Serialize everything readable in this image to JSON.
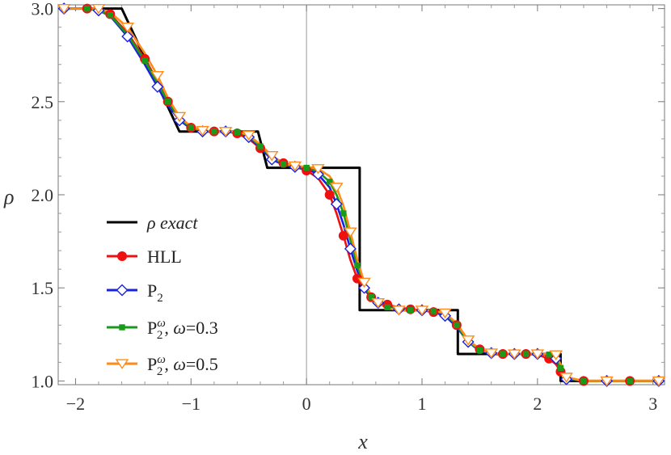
{
  "chart_data": {
    "type": "line",
    "xlabel": "x",
    "ylabel": "ρ",
    "xlim": [
      -2.15,
      3.1
    ],
    "ylim": [
      0.98,
      3.02
    ],
    "xticks": [
      -2,
      -1,
      0,
      1,
      2,
      3
    ],
    "xtick_labels": [
      "−2",
      "−1",
      "0",
      "1",
      "2",
      "3"
    ],
    "yticks": [
      1.0,
      1.5,
      2.0,
      2.5,
      3.0
    ],
    "ytick_labels": [
      "1.0",
      "1.5",
      "2.0",
      "2.5",
      "3.0"
    ],
    "legend_position": "left",
    "series": [
      {
        "name": "ρ exact",
        "legend_label": "ρ exact",
        "color": "#000000",
        "marker": "none",
        "x": [
          -2.1,
          -1.6,
          -1.1,
          -0.42,
          -0.34,
          0.46,
          0.46,
          1.31,
          1.31,
          2.2,
          2.2,
          3.05
        ],
        "y": [
          3.0,
          3.0,
          2.34,
          2.34,
          2.145,
          2.145,
          1.38,
          1.38,
          1.145,
          1.145,
          1.0,
          1.0
        ]
      },
      {
        "name": "HLL",
        "legend_label": "HLL",
        "color": "#ee1111",
        "marker": "circle",
        "x": [
          -2.1,
          -1.9,
          -1.8,
          -1.7,
          -1.55,
          -1.4,
          -1.29,
          -1.2,
          -1.1,
          -1.0,
          -0.9,
          -0.8,
          -0.7,
          -0.6,
          -0.5,
          -0.4,
          -0.3,
          -0.2,
          -0.1,
          0.0,
          0.1,
          0.2,
          0.26,
          0.32,
          0.38,
          0.44,
          0.5,
          0.56,
          0.62,
          0.7,
          0.8,
          0.9,
          1.0,
          1.1,
          1.2,
          1.3,
          1.4,
          1.5,
          1.6,
          1.7,
          1.8,
          1.9,
          2.0,
          2.1,
          2.16,
          2.2,
          2.25,
          2.4,
          2.6,
          2.8,
          3.05
        ],
        "y": [
          3.0,
          3.0,
          2.99,
          2.97,
          2.87,
          2.73,
          2.61,
          2.5,
          2.41,
          2.36,
          2.34,
          2.34,
          2.34,
          2.33,
          2.3,
          2.25,
          2.2,
          2.17,
          2.15,
          2.13,
          2.09,
          2.0,
          1.9,
          1.78,
          1.65,
          1.55,
          1.49,
          1.45,
          1.43,
          1.41,
          1.395,
          1.385,
          1.38,
          1.37,
          1.35,
          1.3,
          1.22,
          1.17,
          1.15,
          1.145,
          1.145,
          1.145,
          1.14,
          1.12,
          1.09,
          1.05,
          1.02,
          1.0,
          1.0,
          1.0,
          1.0
        ]
      },
      {
        "name": "P2",
        "legend_label": "P",
        "legend_sub": "2",
        "color": "#1a22dd",
        "marker": "diamond",
        "x": [
          -2.1,
          -1.9,
          -1.8,
          -1.7,
          -1.55,
          -1.4,
          -1.29,
          -1.2,
          -1.1,
          -1.0,
          -0.9,
          -0.8,
          -0.7,
          -0.6,
          -0.5,
          -0.4,
          -0.3,
          -0.2,
          -0.1,
          0.0,
          0.1,
          0.2,
          0.26,
          0.32,
          0.38,
          0.44,
          0.5,
          0.56,
          0.62,
          0.7,
          0.8,
          0.9,
          1.0,
          1.1,
          1.2,
          1.3,
          1.4,
          1.5,
          1.6,
          1.7,
          1.8,
          1.9,
          2.0,
          2.1,
          2.16,
          2.2,
          2.25,
          2.4,
          2.6,
          2.8,
          3.05
        ],
        "y": [
          3.0,
          3.0,
          2.99,
          2.96,
          2.85,
          2.7,
          2.58,
          2.48,
          2.4,
          2.355,
          2.34,
          2.34,
          2.34,
          2.335,
          2.31,
          2.25,
          2.19,
          2.16,
          2.15,
          2.14,
          2.11,
          2.04,
          1.95,
          1.84,
          1.71,
          1.59,
          1.5,
          1.45,
          1.42,
          1.4,
          1.385,
          1.38,
          1.38,
          1.37,
          1.35,
          1.29,
          1.21,
          1.16,
          1.15,
          1.145,
          1.145,
          1.145,
          1.145,
          1.14,
          1.12,
          1.06,
          1.01,
          1.0,
          1.0,
          1.0,
          1.0
        ]
      },
      {
        "name": "P2ω, ω=0.3",
        "legend_label": "P",
        "legend_sub": "2",
        "legend_sup": "ω",
        "legend_tail": ", ω=0.3",
        "color": "#1a9a1a",
        "marker": "square",
        "x": [
          -2.1,
          -1.9,
          -1.8,
          -1.7,
          -1.55,
          -1.4,
          -1.29,
          -1.2,
          -1.1,
          -1.0,
          -0.9,
          -0.8,
          -0.7,
          -0.6,
          -0.5,
          -0.4,
          -0.3,
          -0.2,
          -0.1,
          0.0,
          0.1,
          0.2,
          0.26,
          0.32,
          0.38,
          0.44,
          0.5,
          0.56,
          0.62,
          0.7,
          0.8,
          0.9,
          1.0,
          1.1,
          1.2,
          1.3,
          1.4,
          1.5,
          1.6,
          1.7,
          1.8,
          1.9,
          2.0,
          2.1,
          2.16,
          2.2,
          2.25,
          2.4,
          2.6,
          2.8,
          3.05
        ],
        "y": [
          3.0,
          3.0,
          2.99,
          2.965,
          2.86,
          2.72,
          2.6,
          2.5,
          2.41,
          2.36,
          2.345,
          2.34,
          2.34,
          2.335,
          2.315,
          2.26,
          2.2,
          2.165,
          2.15,
          2.145,
          2.125,
          2.07,
          2.0,
          1.9,
          1.76,
          1.62,
          1.51,
          1.45,
          1.42,
          1.395,
          1.385,
          1.38,
          1.38,
          1.375,
          1.36,
          1.3,
          1.21,
          1.165,
          1.15,
          1.145,
          1.145,
          1.145,
          1.145,
          1.142,
          1.13,
          1.07,
          1.015,
          1.0,
          1.0,
          1.0,
          1.0
        ]
      },
      {
        "name": "P2ω, ω=0.5",
        "legend_label": "P",
        "legend_sub": "2",
        "legend_sup": "ω",
        "legend_tail": ", ω=0.5",
        "color": "#ff8c1a",
        "marker": "triangle-down",
        "x": [
          -2.1,
          -1.9,
          -1.8,
          -1.7,
          -1.55,
          -1.4,
          -1.29,
          -1.2,
          -1.1,
          -1.0,
          -0.9,
          -0.8,
          -0.7,
          -0.6,
          -0.5,
          -0.4,
          -0.3,
          -0.2,
          -0.1,
          0.0,
          0.1,
          0.2,
          0.26,
          0.32,
          0.38,
          0.44,
          0.5,
          0.56,
          0.62,
          0.7,
          0.8,
          0.9,
          1.0,
          1.1,
          1.2,
          1.3,
          1.4,
          1.5,
          1.6,
          1.7,
          1.8,
          1.9,
          2.0,
          2.1,
          2.16,
          2.2,
          2.25,
          2.4,
          2.6,
          2.8,
          3.05
        ],
        "y": [
          3.0,
          3.0,
          3.0,
          2.98,
          2.9,
          2.76,
          2.64,
          2.52,
          2.42,
          2.365,
          2.345,
          2.34,
          2.34,
          2.34,
          2.32,
          2.27,
          2.21,
          2.17,
          2.155,
          2.15,
          2.14,
          2.1,
          2.04,
          1.94,
          1.8,
          1.65,
          1.53,
          1.46,
          1.42,
          1.39,
          1.38,
          1.38,
          1.38,
          1.378,
          1.365,
          1.31,
          1.22,
          1.17,
          1.15,
          1.145,
          1.145,
          1.145,
          1.145,
          1.145,
          1.14,
          1.09,
          1.02,
          1.0,
          1.0,
          1.0,
          1.0
        ]
      }
    ]
  }
}
